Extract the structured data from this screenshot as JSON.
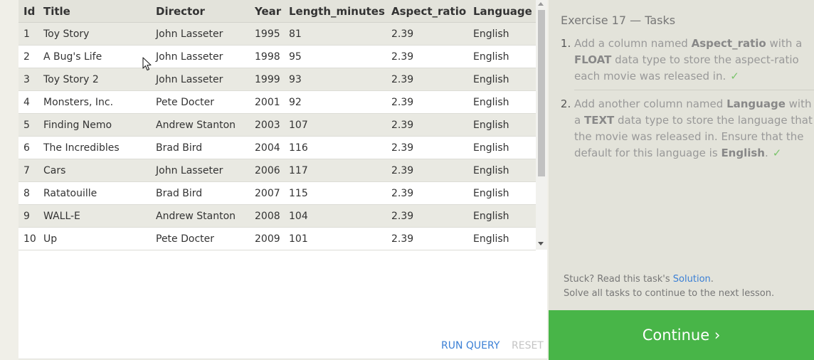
{
  "results": {
    "columns": [
      "Id",
      "Title",
      "Director",
      "Year",
      "Length_minutes",
      "Aspect_ratio",
      "Language"
    ],
    "rows": [
      [
        "1",
        "Toy Story",
        "John Lasseter",
        "1995",
        "81",
        "2.39",
        "English"
      ],
      [
        "2",
        "A Bug's Life",
        "John Lasseter",
        "1998",
        "95",
        "2.39",
        "English"
      ],
      [
        "3",
        "Toy Story 2",
        "John Lasseter",
        "1999",
        "93",
        "2.39",
        "English"
      ],
      [
        "4",
        "Monsters, Inc.",
        "Pete Docter",
        "2001",
        "92",
        "2.39",
        "English"
      ],
      [
        "5",
        "Finding Nemo",
        "Andrew Stanton",
        "2003",
        "107",
        "2.39",
        "English"
      ],
      [
        "6",
        "The Incredibles",
        "Brad Bird",
        "2004",
        "116",
        "2.39",
        "English"
      ],
      [
        "7",
        "Cars",
        "John Lasseter",
        "2006",
        "117",
        "2.39",
        "English"
      ],
      [
        "8",
        "Ratatouille",
        "Brad Bird",
        "2007",
        "115",
        "2.39",
        "English"
      ],
      [
        "9",
        "WALL-E",
        "Andrew Stanton",
        "2008",
        "104",
        "2.39",
        "English"
      ],
      [
        "10",
        "Up",
        "Pete Docter",
        "2009",
        "101",
        "2.39",
        "English"
      ]
    ]
  },
  "actions": {
    "run_label": "RUN QUERY",
    "reset_label": "RESET"
  },
  "tasks": {
    "title": "Exercise 17 — Tasks",
    "items": [
      {
        "parts": [
          "Add a column named ",
          "Aspect_ratio",
          " with a ",
          "FLOAT",
          " data type to store the aspect-ratio each movie was released in."
        ],
        "done_mark": "✓"
      },
      {
        "parts": [
          "Add another column named ",
          "Language",
          " with a ",
          "TEXT",
          " data type to store the language that the movie was released in. Ensure that the default for this language is ",
          "English",
          "."
        ],
        "done_mark": "✓"
      }
    ]
  },
  "hint": {
    "stuck_prefix": "Stuck? Read this task's ",
    "solution_link": "Solution",
    "stuck_suffix": ".",
    "solve_all": "Solve all tasks to continue to the next lesson."
  },
  "continue_label": "Continue ›",
  "icons": {
    "cursor": "mouse-pointer-icon"
  },
  "colors": {
    "continue_bg": "#48b548",
    "link": "#3a7fd5",
    "check": "#7bc46c",
    "task_panel_bg": "#e3e3da"
  }
}
